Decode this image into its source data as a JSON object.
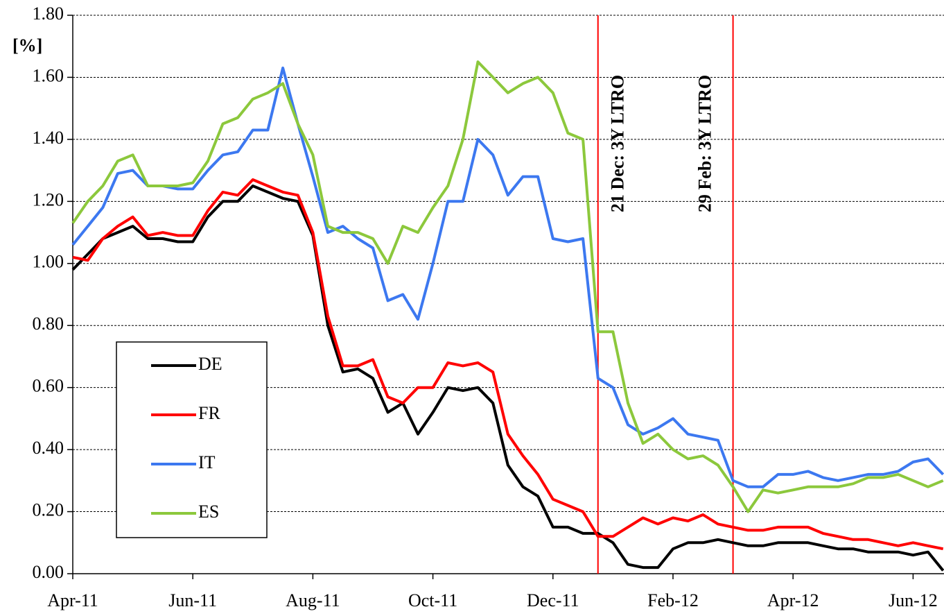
{
  "chart_data": {
    "type": "line",
    "ylabel": "[%]",
    "categories": [
      "Apr-11",
      null,
      null,
      null,
      null,
      null,
      null,
      null,
      "Jun-11",
      null,
      null,
      null,
      null,
      null,
      null,
      null,
      "Aug-11",
      null,
      null,
      null,
      null,
      null,
      null,
      null,
      "Oct-11",
      null,
      null,
      null,
      null,
      null,
      null,
      null,
      "Dec-11",
      null,
      null,
      null,
      null,
      null,
      null,
      null,
      "Feb-12",
      null,
      null,
      null,
      null,
      null,
      null,
      null,
      "Apr-12",
      null,
      null,
      null,
      null,
      null,
      null,
      null,
      "Jun-12",
      null,
      null
    ],
    "series": [
      {
        "name": "DE",
        "color": "#000000",
        "values": [
          0.98,
          1.03,
          1.08,
          1.1,
          1.12,
          1.08,
          1.08,
          1.07,
          1.07,
          1.15,
          1.2,
          1.2,
          1.25,
          1.23,
          1.21,
          1.2,
          1.09,
          0.8,
          0.65,
          0.66,
          0.63,
          0.52,
          0.55,
          0.45,
          0.52,
          0.6,
          0.59,
          0.6,
          0.55,
          0.35,
          0.28,
          0.25,
          0.15,
          0.15,
          0.13,
          0.13,
          0.1,
          0.03,
          0.02,
          0.02,
          0.08,
          0.1,
          0.1,
          0.11,
          0.1,
          0.09,
          0.09,
          0.1,
          0.1,
          0.1,
          0.09,
          0.08,
          0.08,
          0.07,
          0.07,
          0.07,
          0.06,
          0.07,
          0.01
        ]
      },
      {
        "name": "FR",
        "color": "#ff0000",
        "values": [
          1.02,
          1.01,
          1.08,
          1.12,
          1.15,
          1.09,
          1.1,
          1.09,
          1.09,
          1.17,
          1.23,
          1.22,
          1.27,
          1.25,
          1.23,
          1.22,
          1.1,
          0.83,
          0.67,
          0.67,
          0.69,
          0.57,
          0.55,
          0.6,
          0.6,
          0.68,
          0.67,
          0.68,
          0.65,
          0.45,
          0.38,
          0.32,
          0.24,
          0.22,
          0.2,
          0.12,
          0.12,
          0.15,
          0.18,
          0.16,
          0.18,
          0.17,
          0.19,
          0.16,
          0.15,
          0.14,
          0.14,
          0.15,
          0.15,
          0.15,
          0.13,
          0.12,
          0.11,
          0.11,
          0.1,
          0.09,
          0.1,
          0.09,
          0.08
        ]
      },
      {
        "name": "IT",
        "color": "#3c78f0",
        "values": [
          1.06,
          1.12,
          1.18,
          1.29,
          1.3,
          1.25,
          1.25,
          1.24,
          1.24,
          1.3,
          1.35,
          1.36,
          1.43,
          1.43,
          1.63,
          1.45,
          1.28,
          1.1,
          1.12,
          1.08,
          1.05,
          0.88,
          0.9,
          0.82,
          1.0,
          1.2,
          1.2,
          1.4,
          1.35,
          1.22,
          1.28,
          1.28,
          1.08,
          1.07,
          1.08,
          0.63,
          0.6,
          0.48,
          0.45,
          0.47,
          0.5,
          0.45,
          0.44,
          0.43,
          0.3,
          0.28,
          0.28,
          0.32,
          0.32,
          0.33,
          0.31,
          0.3,
          0.31,
          0.32,
          0.32,
          0.33,
          0.36,
          0.37,
          0.32
        ]
      },
      {
        "name": "ES",
        "color": "#8cc83c",
        "values": [
          1.13,
          1.2,
          1.25,
          1.33,
          1.35,
          1.25,
          1.25,
          1.25,
          1.26,
          1.33,
          1.45,
          1.47,
          1.53,
          1.55,
          1.58,
          1.45,
          1.35,
          1.12,
          1.1,
          1.1,
          1.08,
          1.0,
          1.12,
          1.1,
          1.18,
          1.25,
          1.4,
          1.65,
          1.6,
          1.55,
          1.58,
          1.6,
          1.55,
          1.42,
          1.4,
          0.78,
          0.78,
          0.55,
          0.42,
          0.45,
          0.4,
          0.37,
          0.38,
          0.35,
          0.28,
          0.2,
          0.27,
          0.26,
          0.27,
          0.28,
          0.28,
          0.28,
          0.29,
          0.31,
          0.31,
          0.32,
          0.3,
          0.28,
          0.3
        ]
      }
    ],
    "ylim": [
      0,
      1.8
    ],
    "yticks": [
      {
        "value": 0,
        "label": "0.00"
      },
      {
        "value": 0.2,
        "label": "0.20"
      },
      {
        "value": 0.4,
        "label": "0.40"
      },
      {
        "value": 0.6,
        "label": "0.60"
      },
      {
        "value": 0.8,
        "label": "0.80"
      },
      {
        "value": 1,
        "label": "1.00"
      },
      {
        "value": 1.2,
        "label": "1.20"
      },
      {
        "value": 1.4,
        "label": "1.40"
      },
      {
        "value": 1.6,
        "label": "1.60"
      },
      {
        "value": 1.8,
        "label": "1.80"
      }
    ],
    "grid": true,
    "legend": "lower left",
    "annotations": [
      {
        "label": "21 Dec: 3Y LTRO",
        "index": 35,
        "color": "#ff0000"
      },
      {
        "label": "29 Feb: 3Y LTRO",
        "index": 44,
        "color": "#ff0000"
      }
    ]
  }
}
